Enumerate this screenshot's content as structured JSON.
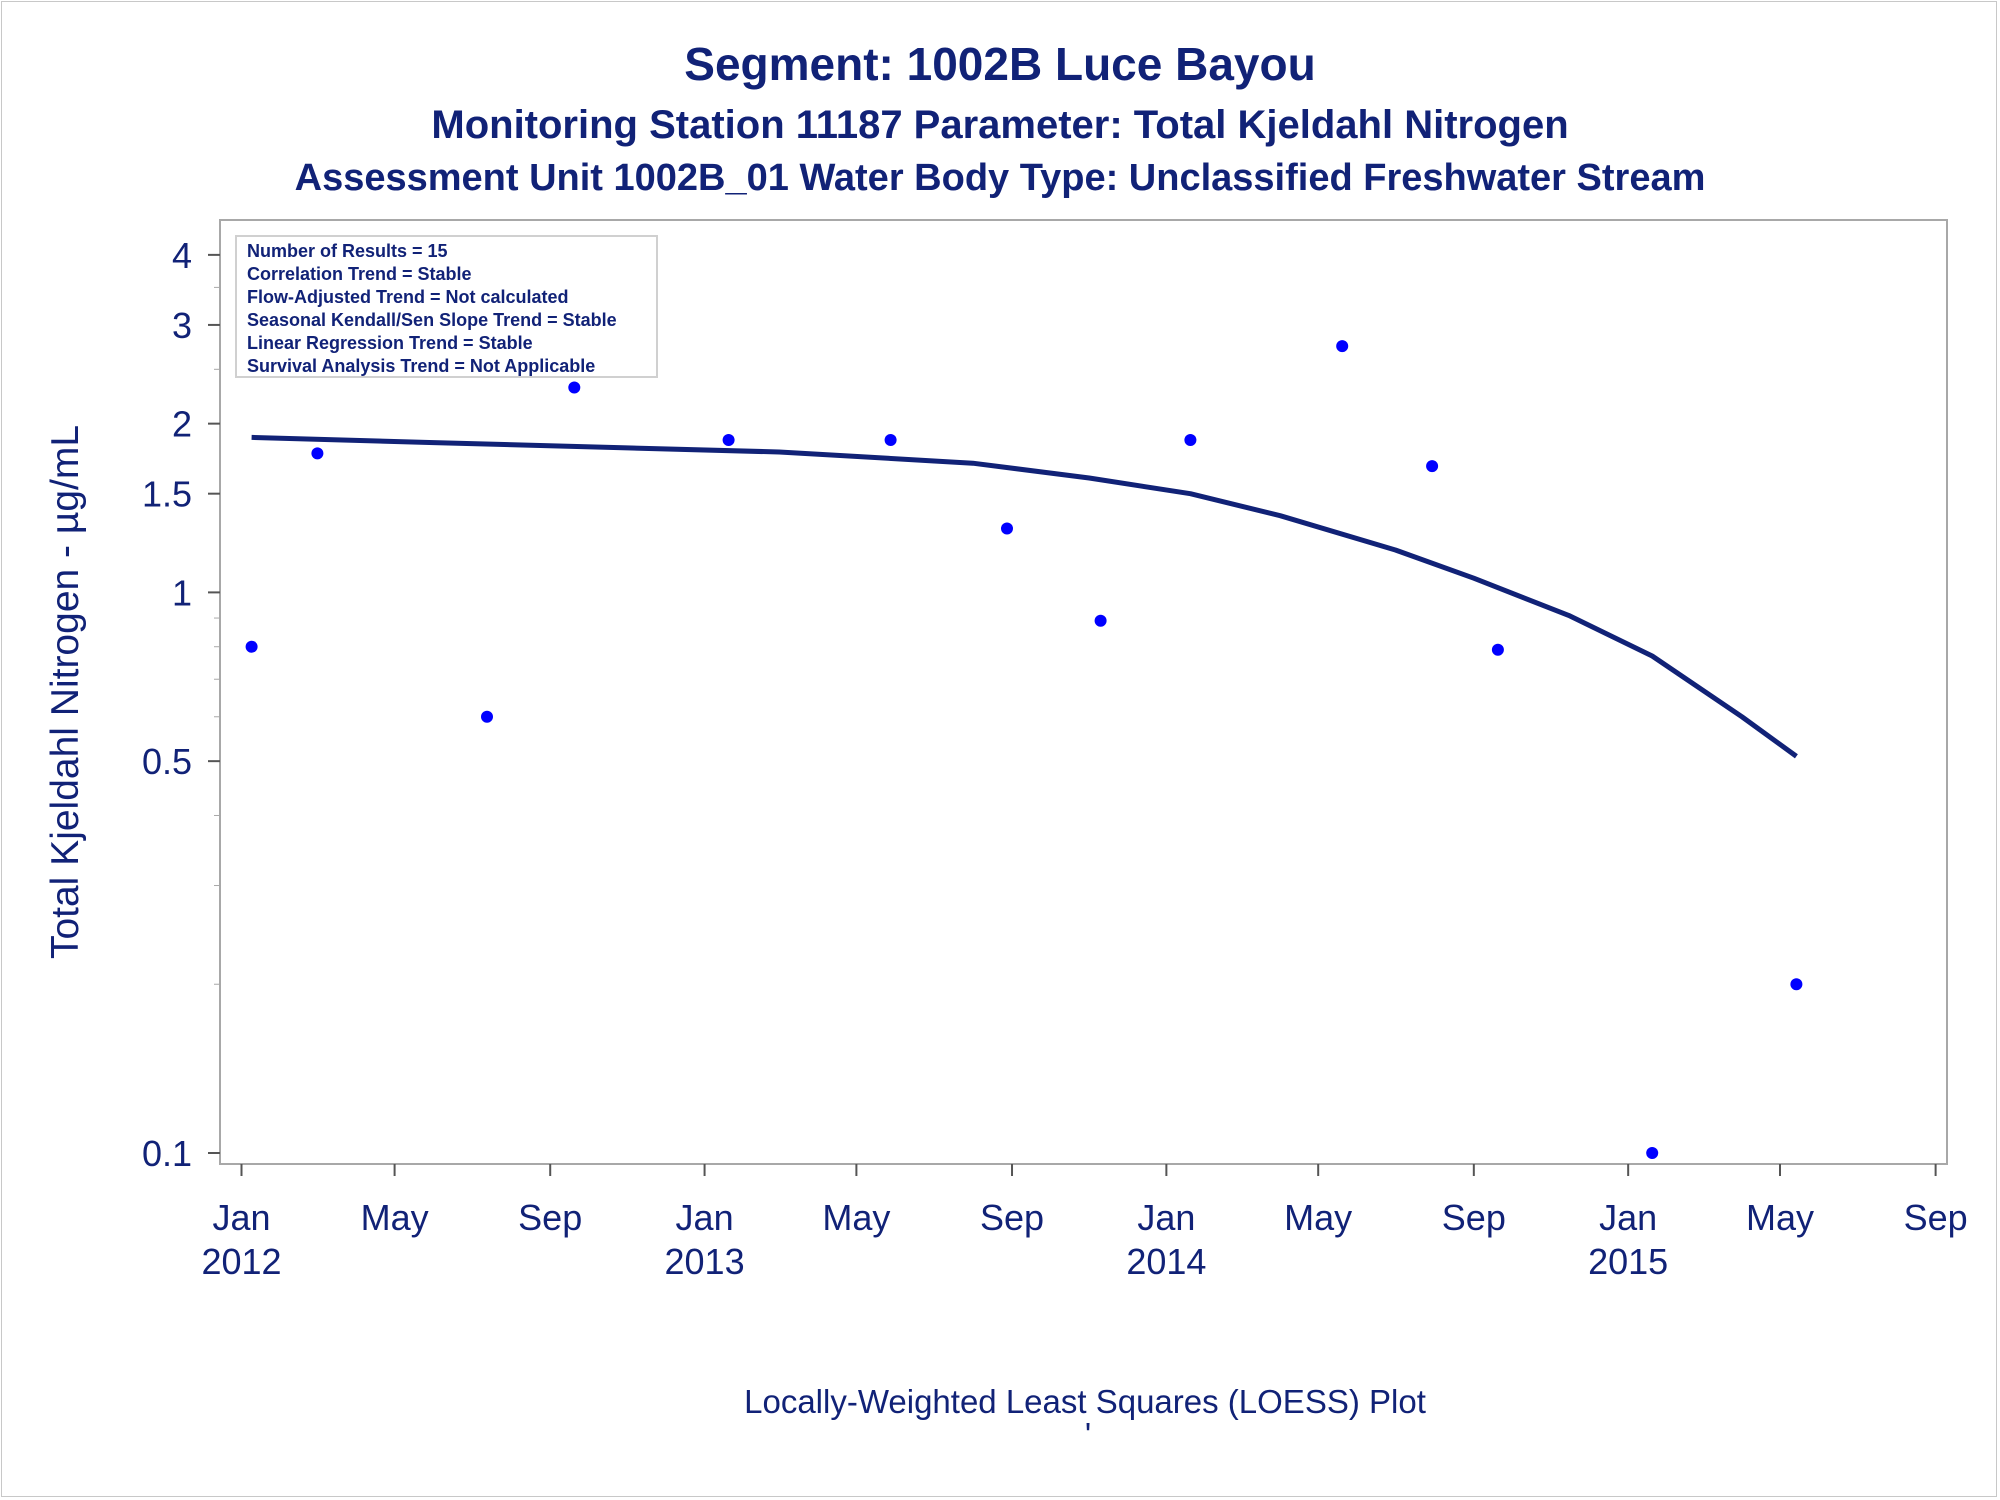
{
  "chart_data": {
    "type": "scatter",
    "title": "Segment: 1002B  Luce Bayou",
    "subtitle": "Monitoring Station 11187 Parameter: Total Kjeldahl Nitrogen",
    "subtitle2": "Assessment Unit 1002B_01   Water Body Type: Unclassified Freshwater Stream",
    "ylabel": "Total Kjeldahl Nitrogen -  µg/mL",
    "xlabel": "Locally-Weighted Least Squares (LOESS) Plot",
    "footnote": "'",
    "yscale": "log",
    "ylim": [
      0.1,
      4.2
    ],
    "xlim": [
      "2011-12-15",
      "2015-09-10"
    ],
    "y_ticks": [
      {
        "value": 4,
        "label": "4"
      },
      {
        "value": 3,
        "label": "3"
      },
      {
        "value": 2,
        "label": "2"
      },
      {
        "value": 1.5,
        "label": "1.5"
      },
      {
        "value": 1,
        "label": "1"
      },
      {
        "value": 0.5,
        "label": "0.5"
      },
      {
        "value": 0.1,
        "label": "0.1"
      }
    ],
    "x_ticks": [
      {
        "date": "2012-01-01",
        "label": "Jan",
        "year": "2012"
      },
      {
        "date": "2012-05-01",
        "label": "May",
        "year": ""
      },
      {
        "date": "2012-09-01",
        "label": "Sep",
        "year": ""
      },
      {
        "date": "2013-01-01",
        "label": "Jan",
        "year": "2013"
      },
      {
        "date": "2013-05-01",
        "label": "May",
        "year": ""
      },
      {
        "date": "2013-09-01",
        "label": "Sep",
        "year": ""
      },
      {
        "date": "2014-01-01",
        "label": "Jan",
        "year": "2014"
      },
      {
        "date": "2014-05-01",
        "label": "May",
        "year": ""
      },
      {
        "date": "2014-09-01",
        "label": "Sep",
        "year": ""
      },
      {
        "date": "2015-01-01",
        "label": "Jan",
        "year": "2015"
      },
      {
        "date": "2015-05-01",
        "label": "May",
        "year": ""
      },
      {
        "date": "2015-09-01",
        "label": "Sep",
        "year": ""
      }
    ],
    "series": [
      {
        "type": "scatter",
        "color": "#0000ff",
        "points": [
          {
            "x": "2012-01-09",
            "y": 0.8
          },
          {
            "x": "2012-03-01",
            "y": 1.77
          },
          {
            "x": "2012-05-16",
            "y": 4.1
          },
          {
            "x": "2012-07-13",
            "y": 0.6
          },
          {
            "x": "2012-09-20",
            "y": 2.32
          },
          {
            "x": "2013-01-20",
            "y": 1.87
          },
          {
            "x": "2013-05-28",
            "y": 1.87
          },
          {
            "x": "2013-08-28",
            "y": 1.3
          },
          {
            "x": "2013-11-10",
            "y": 0.89
          },
          {
            "x": "2014-01-20",
            "y": 1.87
          },
          {
            "x": "2014-05-20",
            "y": 2.75
          },
          {
            "x": "2014-07-30",
            "y": 1.68
          },
          {
            "x": "2014-09-20",
            "y": 0.79
          },
          {
            "x": "2015-01-20",
            "y": 0.1
          },
          {
            "x": "2015-05-14",
            "y": 0.2
          }
        ]
      },
      {
        "type": "line",
        "color": "#112277",
        "points": [
          {
            "x": "2012-01-09",
            "y": 1.89
          },
          {
            "x": "2012-06-01",
            "y": 1.85
          },
          {
            "x": "2012-11-01",
            "y": 1.81
          },
          {
            "x": "2013-03-01",
            "y": 1.78
          },
          {
            "x": "2013-08-01",
            "y": 1.7
          },
          {
            "x": "2013-11-01",
            "y": 1.6
          },
          {
            "x": "2014-01-20",
            "y": 1.5
          },
          {
            "x": "2014-04-01",
            "y": 1.37
          },
          {
            "x": "2014-07-01",
            "y": 1.19
          },
          {
            "x": "2014-09-01",
            "y": 1.06
          },
          {
            "x": "2014-11-15",
            "y": 0.91
          },
          {
            "x": "2015-01-20",
            "y": 0.77
          },
          {
            "x": "2015-04-01",
            "y": 0.6
          },
          {
            "x": "2015-05-14",
            "y": 0.51
          }
        ]
      }
    ],
    "stats_box": [
      "Number of Results = 15",
      "Correlation Trend = Stable",
      "Flow-Adjusted Trend = Not calculated",
      "Seasonal Kendall/Sen Slope Trend = Stable",
      "Linear Regression Trend = Stable",
      "Survival Analysis Trend = Not Applicable"
    ],
    "legend_placement": "top-left",
    "grid": false
  }
}
